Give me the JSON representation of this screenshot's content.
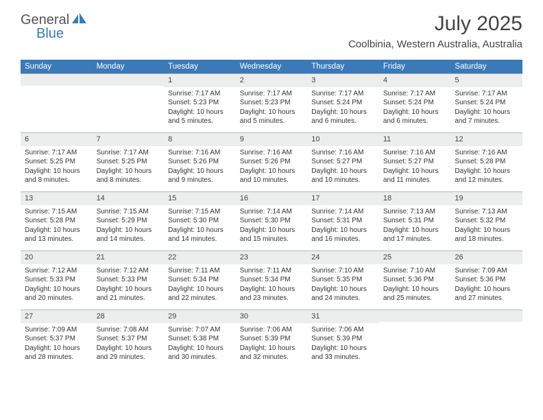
{
  "logo": {
    "part1": "General",
    "part2": "Blue"
  },
  "title": "July 2025",
  "location": "Coolbinia, Western Australia, Australia",
  "colors": {
    "header_bg": "#3a7ab8",
    "header_text": "#ffffff",
    "daybar_bg": "#eceded",
    "daybar_border": "#b8b8b8",
    "body_text": "#333333",
    "logo_gray": "#555555",
    "logo_blue": "#3a7ab8"
  },
  "weekdays": [
    "Sunday",
    "Monday",
    "Tuesday",
    "Wednesday",
    "Thursday",
    "Friday",
    "Saturday"
  ],
  "cells": [
    {
      "n": "",
      "sr": "",
      "ss": "",
      "dl1": "",
      "dl2": ""
    },
    {
      "n": "",
      "sr": "",
      "ss": "",
      "dl1": "",
      "dl2": ""
    },
    {
      "n": "1",
      "sr": "Sunrise: 7:17 AM",
      "ss": "Sunset: 5:23 PM",
      "dl1": "Daylight: 10 hours",
      "dl2": "and 5 minutes."
    },
    {
      "n": "2",
      "sr": "Sunrise: 7:17 AM",
      "ss": "Sunset: 5:23 PM",
      "dl1": "Daylight: 10 hours",
      "dl2": "and 5 minutes."
    },
    {
      "n": "3",
      "sr": "Sunrise: 7:17 AM",
      "ss": "Sunset: 5:24 PM",
      "dl1": "Daylight: 10 hours",
      "dl2": "and 6 minutes."
    },
    {
      "n": "4",
      "sr": "Sunrise: 7:17 AM",
      "ss": "Sunset: 5:24 PM",
      "dl1": "Daylight: 10 hours",
      "dl2": "and 6 minutes."
    },
    {
      "n": "5",
      "sr": "Sunrise: 7:17 AM",
      "ss": "Sunset: 5:24 PM",
      "dl1": "Daylight: 10 hours",
      "dl2": "and 7 minutes."
    },
    {
      "n": "6",
      "sr": "Sunrise: 7:17 AM",
      "ss": "Sunset: 5:25 PM",
      "dl1": "Daylight: 10 hours",
      "dl2": "and 8 minutes."
    },
    {
      "n": "7",
      "sr": "Sunrise: 7:17 AM",
      "ss": "Sunset: 5:25 PM",
      "dl1": "Daylight: 10 hours",
      "dl2": "and 8 minutes."
    },
    {
      "n": "8",
      "sr": "Sunrise: 7:16 AM",
      "ss": "Sunset: 5:26 PM",
      "dl1": "Daylight: 10 hours",
      "dl2": "and 9 minutes."
    },
    {
      "n": "9",
      "sr": "Sunrise: 7:16 AM",
      "ss": "Sunset: 5:26 PM",
      "dl1": "Daylight: 10 hours",
      "dl2": "and 10 minutes."
    },
    {
      "n": "10",
      "sr": "Sunrise: 7:16 AM",
      "ss": "Sunset: 5:27 PM",
      "dl1": "Daylight: 10 hours",
      "dl2": "and 10 minutes."
    },
    {
      "n": "11",
      "sr": "Sunrise: 7:16 AM",
      "ss": "Sunset: 5:27 PM",
      "dl1": "Daylight: 10 hours",
      "dl2": "and 11 minutes."
    },
    {
      "n": "12",
      "sr": "Sunrise: 7:16 AM",
      "ss": "Sunset: 5:28 PM",
      "dl1": "Daylight: 10 hours",
      "dl2": "and 12 minutes."
    },
    {
      "n": "13",
      "sr": "Sunrise: 7:15 AM",
      "ss": "Sunset: 5:28 PM",
      "dl1": "Daylight: 10 hours",
      "dl2": "and 13 minutes."
    },
    {
      "n": "14",
      "sr": "Sunrise: 7:15 AM",
      "ss": "Sunset: 5:29 PM",
      "dl1": "Daylight: 10 hours",
      "dl2": "and 14 minutes."
    },
    {
      "n": "15",
      "sr": "Sunrise: 7:15 AM",
      "ss": "Sunset: 5:30 PM",
      "dl1": "Daylight: 10 hours",
      "dl2": "and 14 minutes."
    },
    {
      "n": "16",
      "sr": "Sunrise: 7:14 AM",
      "ss": "Sunset: 5:30 PM",
      "dl1": "Daylight: 10 hours",
      "dl2": "and 15 minutes."
    },
    {
      "n": "17",
      "sr": "Sunrise: 7:14 AM",
      "ss": "Sunset: 5:31 PM",
      "dl1": "Daylight: 10 hours",
      "dl2": "and 16 minutes."
    },
    {
      "n": "18",
      "sr": "Sunrise: 7:13 AM",
      "ss": "Sunset: 5:31 PM",
      "dl1": "Daylight: 10 hours",
      "dl2": "and 17 minutes."
    },
    {
      "n": "19",
      "sr": "Sunrise: 7:13 AM",
      "ss": "Sunset: 5:32 PM",
      "dl1": "Daylight: 10 hours",
      "dl2": "and 18 minutes."
    },
    {
      "n": "20",
      "sr": "Sunrise: 7:12 AM",
      "ss": "Sunset: 5:33 PM",
      "dl1": "Daylight: 10 hours",
      "dl2": "and 20 minutes."
    },
    {
      "n": "21",
      "sr": "Sunrise: 7:12 AM",
      "ss": "Sunset: 5:33 PM",
      "dl1": "Daylight: 10 hours",
      "dl2": "and 21 minutes."
    },
    {
      "n": "22",
      "sr": "Sunrise: 7:11 AM",
      "ss": "Sunset: 5:34 PM",
      "dl1": "Daylight: 10 hours",
      "dl2": "and 22 minutes."
    },
    {
      "n": "23",
      "sr": "Sunrise: 7:11 AM",
      "ss": "Sunset: 5:34 PM",
      "dl1": "Daylight: 10 hours",
      "dl2": "and 23 minutes."
    },
    {
      "n": "24",
      "sr": "Sunrise: 7:10 AM",
      "ss": "Sunset: 5:35 PM",
      "dl1": "Daylight: 10 hours",
      "dl2": "and 24 minutes."
    },
    {
      "n": "25",
      "sr": "Sunrise: 7:10 AM",
      "ss": "Sunset: 5:36 PM",
      "dl1": "Daylight: 10 hours",
      "dl2": "and 25 minutes."
    },
    {
      "n": "26",
      "sr": "Sunrise: 7:09 AM",
      "ss": "Sunset: 5:36 PM",
      "dl1": "Daylight: 10 hours",
      "dl2": "and 27 minutes."
    },
    {
      "n": "27",
      "sr": "Sunrise: 7:09 AM",
      "ss": "Sunset: 5:37 PM",
      "dl1": "Daylight: 10 hours",
      "dl2": "and 28 minutes."
    },
    {
      "n": "28",
      "sr": "Sunrise: 7:08 AM",
      "ss": "Sunset: 5:37 PM",
      "dl1": "Daylight: 10 hours",
      "dl2": "and 29 minutes."
    },
    {
      "n": "29",
      "sr": "Sunrise: 7:07 AM",
      "ss": "Sunset: 5:38 PM",
      "dl1": "Daylight: 10 hours",
      "dl2": "and 30 minutes."
    },
    {
      "n": "30",
      "sr": "Sunrise: 7:06 AM",
      "ss": "Sunset: 5:39 PM",
      "dl1": "Daylight: 10 hours",
      "dl2": "and 32 minutes."
    },
    {
      "n": "31",
      "sr": "Sunrise: 7:06 AM",
      "ss": "Sunset: 5:39 PM",
      "dl1": "Daylight: 10 hours",
      "dl2": "and 33 minutes."
    },
    {
      "n": "",
      "sr": "",
      "ss": "",
      "dl1": "",
      "dl2": ""
    },
    {
      "n": "",
      "sr": "",
      "ss": "",
      "dl1": "",
      "dl2": ""
    }
  ]
}
